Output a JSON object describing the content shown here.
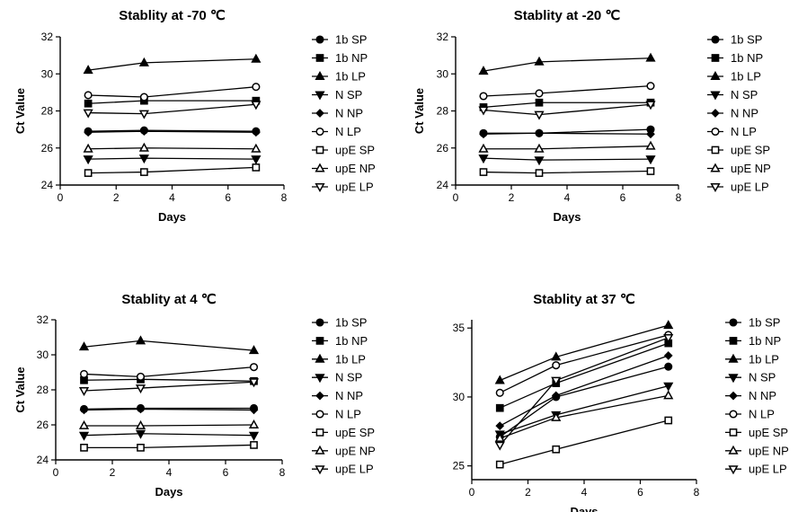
{
  "chart_data": [
    {
      "type": "line",
      "title": "Stablity at -70 ℃",
      "xlabel": "Days",
      "ylabel": "Ct Value",
      "xlim": [
        0,
        8
      ],
      "ylim": [
        24,
        32
      ],
      "xticks": [
        0,
        2,
        4,
        6,
        8
      ],
      "yticks": [
        24,
        26,
        28,
        30,
        32
      ],
      "legend_position": "right",
      "x": [
        1,
        3,
        7
      ],
      "series": [
        {
          "name": "1b SP",
          "marker": "circle-filled",
          "values": [
            26.9,
            26.95,
            26.9
          ]
        },
        {
          "name": "1b NP",
          "marker": "square-filled",
          "values": [
            28.4,
            28.55,
            28.55
          ]
        },
        {
          "name": "1b LP",
          "marker": "triangle-up-filled",
          "values": [
            30.2,
            30.6,
            30.8
          ]
        },
        {
          "name": "N SP",
          "marker": "triangle-down-filled",
          "values": [
            25.4,
            25.45,
            25.4
          ]
        },
        {
          "name": "N NP",
          "marker": "diamond-filled",
          "values": [
            26.85,
            26.9,
            26.85
          ]
        },
        {
          "name": "N LP",
          "marker": "circle-open",
          "values": [
            28.85,
            28.75,
            29.3
          ]
        },
        {
          "name": "upE SP",
          "marker": "square-open",
          "values": [
            24.65,
            24.7,
            24.95
          ]
        },
        {
          "name": "upE NP",
          "marker": "triangle-up-open",
          "values": [
            25.95,
            26.0,
            25.95
          ]
        },
        {
          "name": "upE LP",
          "marker": "triangle-down-open",
          "values": [
            27.9,
            27.85,
            28.35
          ]
        }
      ]
    },
    {
      "type": "line",
      "title": "Stablity at -20 ℃",
      "xlabel": "Days",
      "ylabel": "Ct Value",
      "xlim": [
        0,
        8
      ],
      "ylim": [
        24,
        32
      ],
      "xticks": [
        0,
        2,
        4,
        6,
        8
      ],
      "yticks": [
        24,
        26,
        28,
        30,
        32
      ],
      "legend_position": "right",
      "x": [
        1,
        3,
        7
      ],
      "series": [
        {
          "name": "1b SP",
          "marker": "circle-filled",
          "values": [
            26.8,
            26.8,
            27.0
          ]
        },
        {
          "name": "1b NP",
          "marker": "square-filled",
          "values": [
            28.2,
            28.45,
            28.45
          ]
        },
        {
          "name": "1b LP",
          "marker": "triangle-up-filled",
          "values": [
            30.15,
            30.65,
            30.85
          ]
        },
        {
          "name": "N SP",
          "marker": "triangle-down-filled",
          "values": [
            25.45,
            25.35,
            25.4
          ]
        },
        {
          "name": "N NP",
          "marker": "diamond-filled",
          "values": [
            26.75,
            26.8,
            26.75
          ]
        },
        {
          "name": "N LP",
          "marker": "circle-open",
          "values": [
            28.8,
            28.95,
            29.35
          ]
        },
        {
          "name": "upE SP",
          "marker": "square-open",
          "values": [
            24.7,
            24.65,
            24.75
          ]
        },
        {
          "name": "upE NP",
          "marker": "triangle-up-open",
          "values": [
            25.95,
            25.95,
            26.1
          ]
        },
        {
          "name": "upE LP",
          "marker": "triangle-down-open",
          "values": [
            28.05,
            27.8,
            28.35
          ]
        }
      ]
    },
    {
      "type": "line",
      "title": "Stablity at 4 ℃",
      "xlabel": "Days",
      "ylabel": "Ct Value",
      "xlim": [
        0,
        8
      ],
      "ylim": [
        24,
        32
      ],
      "xticks": [
        0,
        2,
        4,
        6,
        8
      ],
      "yticks": [
        24,
        26,
        28,
        30,
        32
      ],
      "legend_position": "right",
      "x": [
        1,
        3,
        7
      ],
      "series": [
        {
          "name": "1b SP",
          "marker": "circle-filled",
          "values": [
            26.9,
            26.95,
            26.95
          ]
        },
        {
          "name": "1b NP",
          "marker": "square-filled",
          "values": [
            28.55,
            28.6,
            28.5
          ]
        },
        {
          "name": "1b LP",
          "marker": "triangle-up-filled",
          "values": [
            30.45,
            30.8,
            30.25
          ]
        },
        {
          "name": "N SP",
          "marker": "triangle-down-filled",
          "values": [
            25.4,
            25.5,
            25.4
          ]
        },
        {
          "name": "N NP",
          "marker": "diamond-filled",
          "values": [
            26.85,
            26.9,
            26.85
          ]
        },
        {
          "name": "N LP",
          "marker": "circle-open",
          "values": [
            28.9,
            28.75,
            29.3
          ]
        },
        {
          "name": "upE SP",
          "marker": "square-open",
          "values": [
            24.7,
            24.7,
            24.85
          ]
        },
        {
          "name": "upE NP",
          "marker": "triangle-up-open",
          "values": [
            25.95,
            25.95,
            26.0
          ]
        },
        {
          "name": "upE LP",
          "marker": "triangle-down-open",
          "values": [
            27.95,
            28.1,
            28.45
          ]
        }
      ]
    },
    {
      "type": "line",
      "title": "Stablity at 37 ℃",
      "xlabel": "Days",
      "ylabel": "",
      "xlim": [
        0,
        8
      ],
      "ylim": [
        24,
        35.6
      ],
      "xticks": [
        0,
        2,
        4,
        6,
        8
      ],
      "yticks": [
        25,
        30,
        35
      ],
      "legend_position": "right",
      "x": [
        1,
        3,
        7
      ],
      "series": [
        {
          "name": "1b SP",
          "marker": "circle-filled",
          "values": [
            27.1,
            30.0,
            32.2
          ]
        },
        {
          "name": "1b NP",
          "marker": "square-filled",
          "values": [
            29.2,
            31.0,
            33.9
          ]
        },
        {
          "name": "1b LP",
          "marker": "triangle-up-filled",
          "values": [
            31.2,
            32.9,
            35.2
          ]
        },
        {
          "name": "N SP",
          "marker": "triangle-down-filled",
          "values": [
            27.3,
            28.7,
            30.8
          ]
        },
        {
          "name": "N NP",
          "marker": "diamond-filled",
          "values": [
            27.9,
            30.1,
            33.0
          ]
        },
        {
          "name": "N LP",
          "marker": "circle-open",
          "values": [
            30.3,
            32.3,
            34.5
          ]
        },
        {
          "name": "upE SP",
          "marker": "square-open",
          "values": [
            25.1,
            26.2,
            28.3
          ]
        },
        {
          "name": "upE NP",
          "marker": "triangle-up-open",
          "values": [
            27.0,
            28.5,
            30.1
          ]
        },
        {
          "name": "upE LP",
          "marker": "triangle-down-open",
          "values": [
            26.5,
            31.2,
            34.3
          ]
        }
      ]
    }
  ]
}
